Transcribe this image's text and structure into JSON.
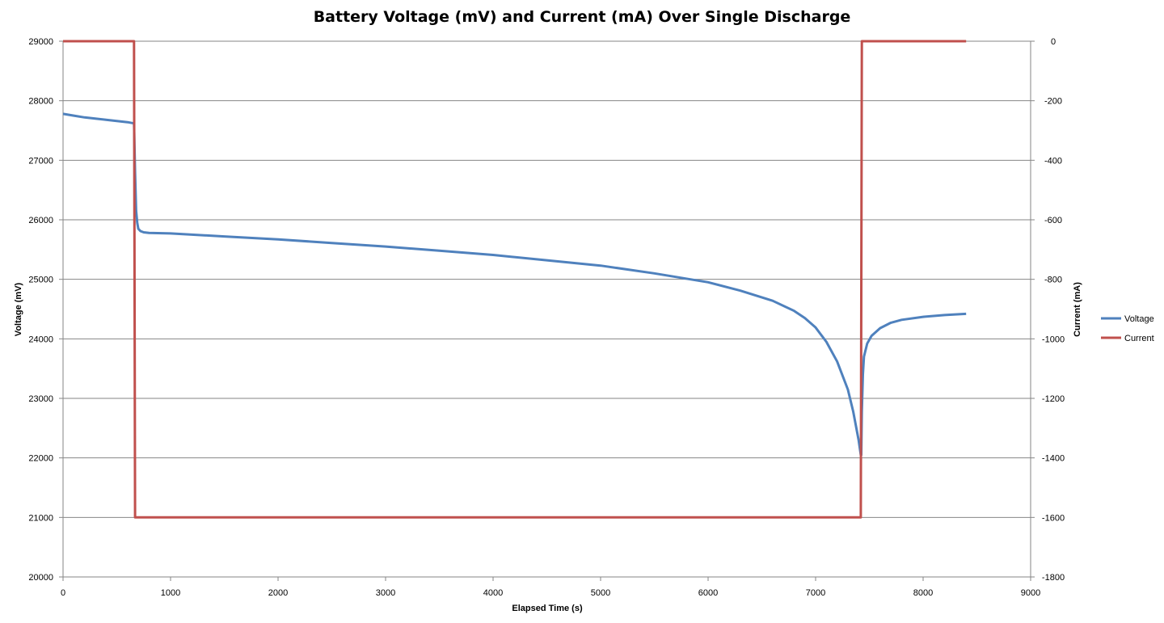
{
  "chart_data": {
    "type": "line",
    "title": "Battery Voltage (mV) and Current (mA) Over Single Discharge",
    "xlabel": "Elapsed Time (s)",
    "ylabel": "Voltage (mV)",
    "y2label": "Current (mA)",
    "xlim": [
      0,
      9000
    ],
    "ylim": [
      20000,
      29000
    ],
    "y2lim": [
      -1800,
      0
    ],
    "x_ticks": [
      "0",
      "1000",
      "2000",
      "3000",
      "4000",
      "5000",
      "6000",
      "7000",
      "8000",
      "9000"
    ],
    "y_ticks": [
      "20000",
      "21000",
      "22000",
      "23000",
      "24000",
      "25000",
      "26000",
      "27000",
      "28000",
      "29000"
    ],
    "y2_ticks": [
      "-1800",
      "-1600",
      "-1400",
      "-1200",
      "-1000",
      "-800",
      "-600",
      "-400",
      "-200",
      "0"
    ],
    "grid": "horizontal",
    "legend_position": "right",
    "series": [
      {
        "name": "Voltage",
        "axis": "left",
        "color": "#4F81BD",
        "x": [
          0,
          100,
          200,
          300,
          400,
          500,
          600,
          660,
          670,
          680,
          690,
          700,
          720,
          750,
          800,
          1000,
          1500,
          2000,
          2500,
          3000,
          3500,
          4000,
          4500,
          5000,
          5500,
          6000,
          6300,
          6600,
          6800,
          6900,
          7000,
          7100,
          7200,
          7300,
          7350,
          7400,
          7420,
          7425,
          7430,
          7440,
          7450,
          7480,
          7520,
          7600,
          7700,
          7800,
          8000,
          8200,
          8400
        ],
        "y": [
          27780,
          27750,
          27720,
          27700,
          27680,
          27660,
          27640,
          27620,
          26800,
          26150,
          25950,
          25850,
          25810,
          25790,
          25780,
          25770,
          25720,
          25670,
          25610,
          25550,
          25480,
          25410,
          25320,
          25230,
          25100,
          24950,
          24810,
          24640,
          24470,
          24350,
          24190,
          23950,
          23620,
          23150,
          22780,
          22300,
          22050,
          22050,
          22780,
          23400,
          23700,
          23920,
          24050,
          24180,
          24270,
          24320,
          24370,
          24400,
          24420
        ]
      },
      {
        "name": "Current",
        "axis": "right",
        "color": "#C0504D",
        "x": [
          0,
          660,
          670,
          680,
          7420,
          7430,
          8400
        ],
        "y": [
          0,
          0,
          -1600,
          -1600,
          -1600,
          0,
          0
        ]
      }
    ]
  }
}
